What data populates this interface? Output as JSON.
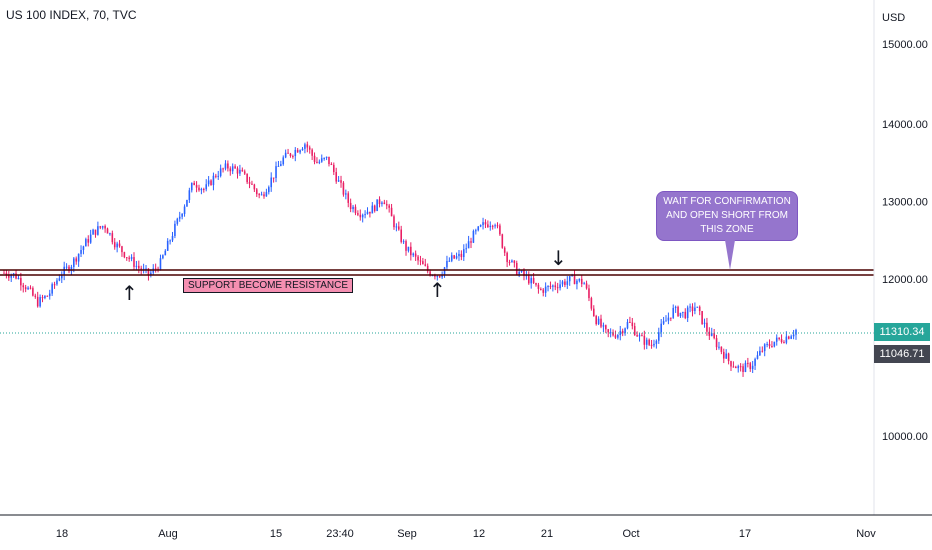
{
  "title": "US 100 INDEX, 70, TVC",
  "currency": "USD",
  "annotations": {
    "support_label": "SUPPORT BECOME RESISTANCE",
    "callout": "WAIT FOR CONFIRMATION AND OPEN SHORT FROM THIS ZONE",
    "up_arrow": "↑",
    "down_arrow": "↓"
  },
  "price_tags": {
    "last_price": "11310.34",
    "last_color": "#26a69a",
    "secondary_price": "11046.71",
    "secondary_color": "#434651"
  },
  "colors": {
    "bull": "#2962ff",
    "bear": "#e91e63",
    "support_line": "#4a0000",
    "callout_bg": "#9575cd",
    "label_bg": "#f48fb1"
  },
  "chart_data": {
    "type": "candlestick",
    "ylim": [
      8500,
      15800
    ],
    "yticks": [
      {
        "value": 15000,
        "label": "15000.00"
      },
      {
        "value": 14000,
        "label": "14000.00"
      },
      {
        "value": 13000,
        "label": "13000.00"
      },
      {
        "value": 12000,
        "label": "12000.00"
      },
      {
        "value": 10000,
        "label": "10000.00"
      }
    ],
    "xticks": [
      "18",
      "Aug",
      "15",
      "23:40",
      "Sep",
      "12",
      "21",
      "Oct",
      "17",
      "Nov"
    ],
    "support_zone": [
      12050,
      12120
    ],
    "current_price": 11310.34,
    "series": [
      {
        "values": [
          12080,
          12050,
          11900,
          11700,
          11800,
          12050,
          12180,
          12400,
          12600,
          12700,
          12450,
          12300,
          12150,
          12050,
          12200,
          12550,
          12900,
          13250,
          13150,
          13350,
          13450,
          13400,
          13250,
          13050,
          13300,
          13550,
          13650,
          13750,
          13500,
          13550,
          13250,
          12950,
          12850,
          12900,
          13050,
          12700,
          12400,
          12250,
          12100,
          12050,
          12250,
          12300,
          12550,
          12700,
          12750,
          12300,
          12100,
          12000,
          11850,
          11900,
          11950,
          12000,
          11950,
          11500,
          11300,
          11300,
          11450,
          11250,
          11150,
          11400,
          11600,
          11550,
          11650,
          11350,
          11150,
          10950,
          10850,
          10900,
          11100,
          11200,
          11250,
          11350
        ]
      }
    ]
  }
}
